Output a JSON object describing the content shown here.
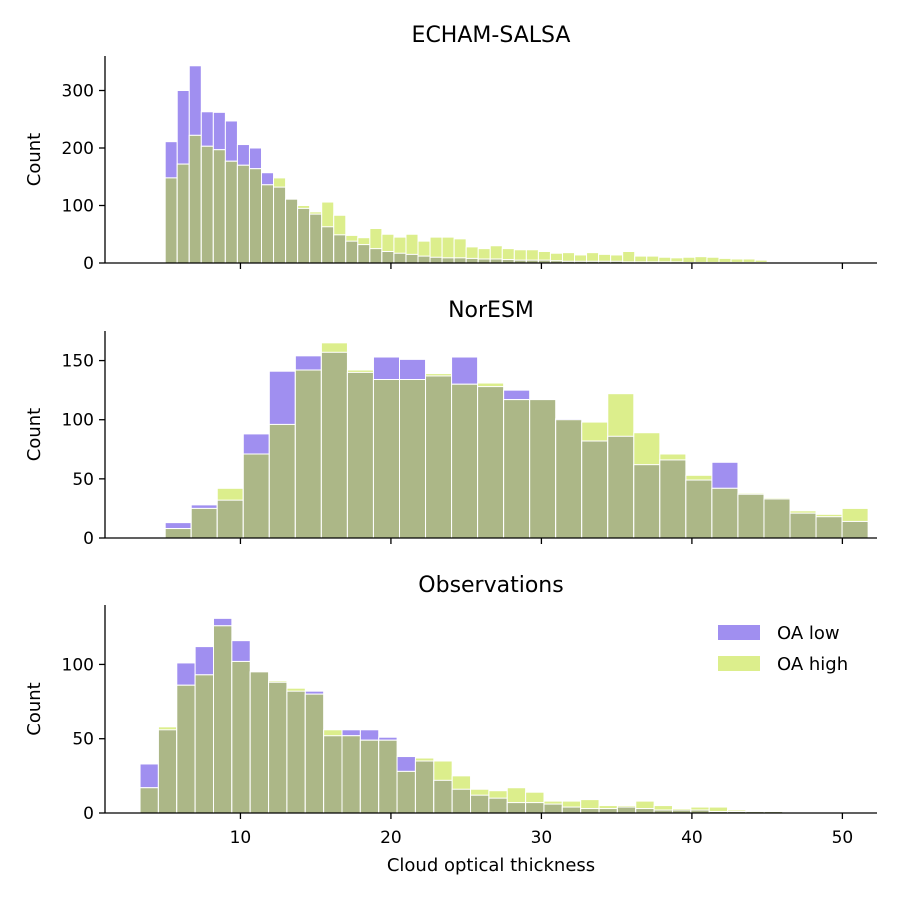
{
  "colors": {
    "oa_low": "#a08ff0",
    "oa_high": "#dcee8c",
    "overlap": "#acb787",
    "bar_edge": "#ffffff",
    "axis": "#000000"
  },
  "figure": {
    "xlabel": "Cloud optical thickness",
    "xticks": [
      10,
      20,
      30,
      40,
      50
    ],
    "legend": [
      {
        "label": "OA low",
        "color": "#a08ff0"
      },
      {
        "label": "OA high",
        "color": "#dcee8c"
      }
    ]
  },
  "chart_data": [
    {
      "type": "bar",
      "title": "ECHAM-SALSA",
      "ylabel": "Count",
      "xlim": [
        1,
        52.3
      ],
      "ylim": [
        0,
        360
      ],
      "yticks": [
        0,
        100,
        200,
        300
      ],
      "show_xticklabels": false,
      "bins": {
        "start": 5.0,
        "width": 0.8
      },
      "series": [
        {
          "name": "OA low",
          "values": [
            211,
            300,
            343,
            263,
            262,
            247,
            206,
            200,
            157,
            132,
            111,
            95,
            85,
            63,
            49,
            38,
            32,
            25,
            20,
            17,
            15,
            12,
            10,
            9,
            9,
            8,
            7,
            7,
            6,
            5,
            5,
            5,
            4,
            3,
            3,
            3,
            3,
            3,
            2,
            2,
            2,
            2,
            2,
            1,
            1,
            1,
            1,
            1,
            1,
            1
          ]
        },
        {
          "name": "OA high",
          "values": [
            148,
            172,
            222,
            203,
            197,
            177,
            170,
            164,
            136,
            148,
            111,
            100,
            89,
            106,
            83,
            48,
            44,
            60,
            50,
            45,
            50,
            38,
            45,
            45,
            42,
            28,
            25,
            30,
            25,
            23,
            23,
            20,
            17,
            18,
            14,
            18,
            15,
            14,
            20,
            12,
            12,
            10,
            9,
            10,
            11,
            10,
            8,
            7,
            7,
            5
          ]
        }
      ]
    },
    {
      "type": "bar",
      "title": "NorESM",
      "ylabel": "Count",
      "xlim": [
        1,
        52.3
      ],
      "ylim": [
        0,
        175
      ],
      "yticks": [
        0,
        50,
        100,
        150
      ],
      "show_xticklabels": false,
      "bins": {
        "start": 5.0,
        "width": 1.73
      },
      "series": [
        {
          "name": "OA low",
          "values": [
            13,
            28,
            32,
            88,
            141,
            154,
            157,
            140,
            153,
            151,
            137,
            153,
            128,
            125,
            117,
            101,
            82,
            86,
            62,
            66,
            49,
            64,
            37,
            33,
            21,
            18,
            14
          ]
        },
        {
          "name": "OA high",
          "values": [
            8,
            25,
            42,
            71,
            96,
            142,
            165,
            142,
            134,
            134,
            139,
            130,
            131,
            117,
            117,
            100,
            98,
            122,
            89,
            71,
            53,
            42,
            38,
            34,
            23,
            20,
            25
          ]
        }
      ]
    },
    {
      "type": "bar",
      "title": "Observations",
      "ylabel": "Count",
      "xlim": [
        1,
        52.3
      ],
      "ylim": [
        0,
        140
      ],
      "yticks": [
        0,
        50,
        100
      ],
      "show_xticklabels": true,
      "bins": {
        "start": 3.33,
        "width": 1.22
      },
      "series": [
        {
          "name": "OA low",
          "values": [
            33,
            56,
            101,
            112,
            131,
            116,
            95,
            88,
            82,
            82,
            52,
            56,
            56,
            51,
            38,
            35,
            22,
            16,
            12,
            10,
            7,
            7,
            6,
            4,
            3,
            3,
            4,
            3,
            2,
            2,
            2,
            1,
            1,
            1,
            1
          ]
        },
        {
          "name": "OA high",
          "values": [
            17,
            58,
            86,
            93,
            126,
            102,
            95,
            89,
            84,
            80,
            56,
            52,
            49,
            49,
            28,
            37,
            35,
            25,
            16,
            15,
            17,
            14,
            8,
            8,
            9,
            5,
            5,
            8,
            5,
            3,
            4,
            4,
            2,
            1,
            1
          ]
        }
      ]
    }
  ]
}
